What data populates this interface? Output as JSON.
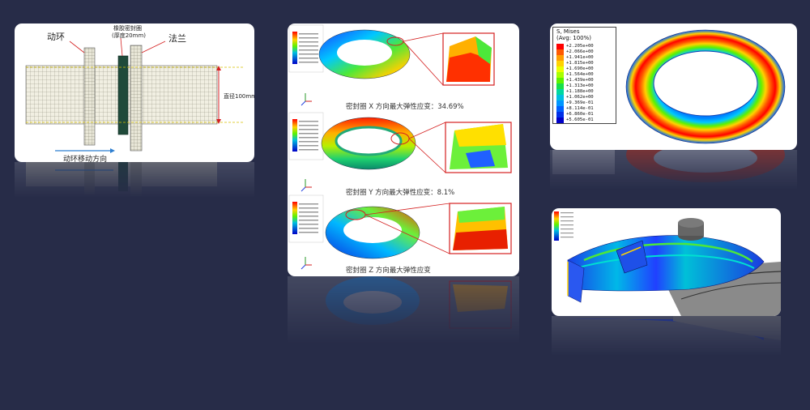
{
  "colors": {
    "background": "#272c48",
    "card": "#ffffff",
    "annotation_red": "#d42020",
    "arrow_blue": "#2f7fd0"
  },
  "card1": {
    "label_moving_ring": "动环",
    "label_rubber_seal": "橡胶密封圈",
    "label_thickness": "(厚度20mm)",
    "label_flange": "法兰",
    "label_diameter": "直径100mm",
    "label_motion_direction": "动环移动方向"
  },
  "card2": {
    "caption_x": "密封圈 X 方向最大弹性应变：34.69%",
    "caption_y": "密封圈 Y 方向最大弹性应变：8.1%",
    "caption_z": "密封圈 Z 方向最大弹性应变"
  },
  "card3": {
    "legend_title": "S, Mises",
    "legend_subtitle": "(Avg: 100%)",
    "legend_values": [
      "+2.205e+00",
      "+2.066e+00",
      "+1.941e+00",
      "+1.815e+00",
      "+1.690e+00",
      "+1.564e+00",
      "+1.439e+00",
      "+1.313e+00",
      "+1.188e+00",
      "+1.062e+00",
      "+9.369e-01",
      "+8.114e-01",
      "+6.860e-01",
      "+5.605e-01"
    ]
  },
  "legend_colors": [
    "#ff0000",
    "#ff5a00",
    "#ff9e00",
    "#ffd200",
    "#eaff00",
    "#a8ff00",
    "#5cf200",
    "#17e04a",
    "#00d8a0",
    "#00bfe0",
    "#0096ff",
    "#0060ff",
    "#0030e8",
    "#0000c8"
  ]
}
